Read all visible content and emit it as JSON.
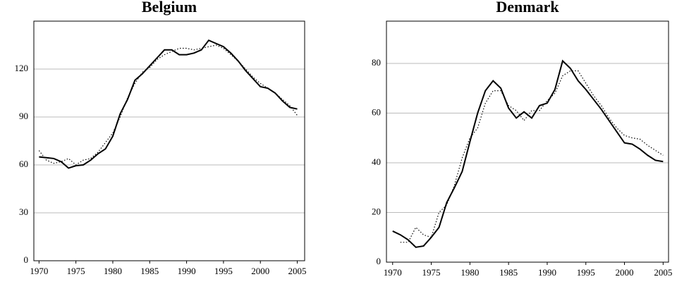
{
  "chart_data": [
    {
      "type": "line",
      "title": "Belgium",
      "xlim": [
        1969.3,
        2006
      ],
      "ylim": [
        0,
        150
      ],
      "xticks": [
        1970,
        1975,
        1980,
        1985,
        1990,
        1995,
        2000,
        2005
      ],
      "yticks": [
        0,
        30,
        60,
        90,
        120
      ],
      "grid": true,
      "x": [
        1970,
        1971,
        1972,
        1973,
        1974,
        1975,
        1976,
        1977,
        1978,
        1979,
        1980,
        1981,
        1982,
        1983,
        1984,
        1985,
        1986,
        1987,
        1988,
        1989,
        1990,
        1991,
        1992,
        1993,
        1994,
        1995,
        1996,
        1997,
        1998,
        1999,
        2000,
        2001,
        2002,
        2003,
        2004,
        2005
      ],
      "series": [
        {
          "color": "#000000",
          "dash": "solid",
          "values": [
            65,
            64.5,
            64,
            62,
            58,
            59.5,
            60,
            63,
            67,
            70,
            78,
            92,
            101,
            113,
            117,
            122,
            127,
            132,
            132,
            129,
            129,
            130,
            132,
            138,
            136,
            134,
            130,
            125,
            119,
            114,
            109,
            108,
            105,
            100,
            96,
            95
          ]
        },
        {
          "color": "#000000",
          "dash": "dotted",
          "values": [
            69,
            63,
            61,
            62,
            64,
            60,
            63,
            64,
            68,
            74,
            80,
            90,
            102,
            111,
            118,
            121,
            126,
            129,
            131,
            133,
            133,
            132,
            133,
            134,
            135,
            133,
            129,
            125,
            120,
            115,
            111,
            108,
            105,
            101,
            97,
            91
          ]
        }
      ]
    },
    {
      "type": "line",
      "title": "Denmark",
      "xlim": [
        1969.2,
        2005.7
      ],
      "ylim": [
        0,
        97
      ],
      "xticks": [
        1970,
        1975,
        1980,
        1985,
        1990,
        1995,
        2000,
        2005
      ],
      "yticks": [
        0,
        20,
        40,
        60,
        80
      ],
      "grid": true,
      "x": [
        1970,
        1971,
        1972,
        1973,
        1974,
        1975,
        1976,
        1977,
        1978,
        1979,
        1980,
        1981,
        1982,
        1983,
        1984,
        1985,
        1986,
        1987,
        1988,
        1989,
        1990,
        1991,
        1992,
        1993,
        1994,
        1995,
        1996,
        1997,
        1998,
        1999,
        2000,
        2001,
        2002,
        2003,
        2004,
        2005
      ],
      "series": [
        {
          "color": "#000000",
          "dash": "solid",
          "values": [
            12.5,
            11,
            9,
            6,
            6.5,
            10,
            14,
            24,
            30,
            36.5,
            48.5,
            60,
            69,
            73,
            70,
            62,
            58,
            60.5,
            58,
            63,
            64,
            69.5,
            81,
            78,
            73,
            69.5,
            65.5,
            61.5,
            57,
            52.5,
            48,
            47.5,
            45.5,
            43,
            41,
            40.5
          ]
        },
        {
          "color": "#000000",
          "dash": "dotted",
          "values": [
            null,
            8,
            8,
            14,
            11,
            10,
            20,
            23,
            31,
            42,
            50,
            54,
            64,
            69,
            69,
            63,
            61,
            57,
            61,
            61,
            65,
            68,
            75,
            77,
            77,
            72,
            67,
            63,
            58,
            54,
            51,
            50,
            49.5,
            47,
            45,
            43
          ]
        }
      ]
    }
  ]
}
